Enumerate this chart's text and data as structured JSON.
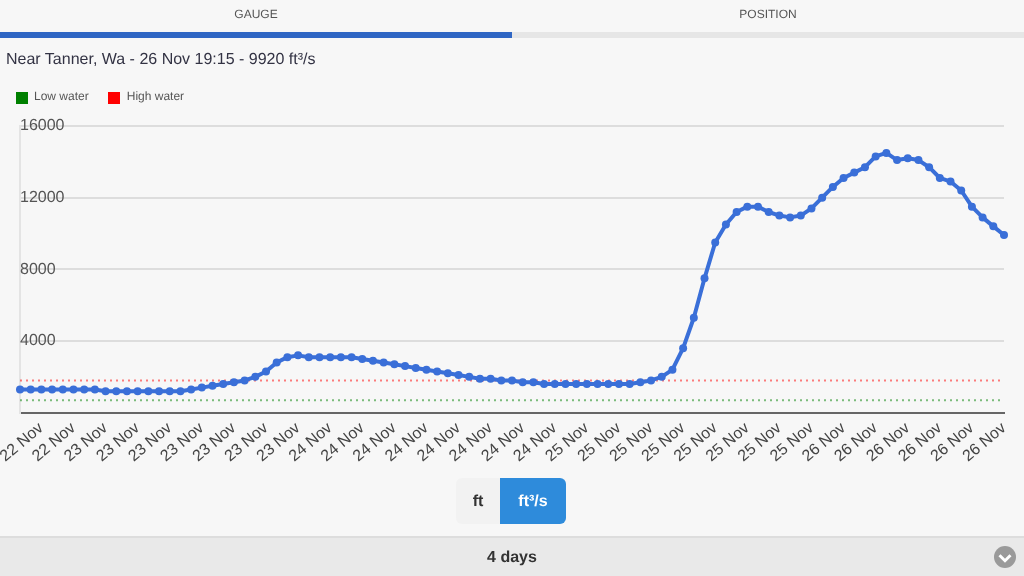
{
  "chart_data": {
    "type": "line",
    "title": "Near Tanner, Wa - 26 Nov 19:15 - 9920 ft³/s",
    "categories": [
      null,
      null,
      "22 Nov",
      null,
      null,
      "22 Nov",
      null,
      null,
      "23 Nov",
      null,
      null,
      "23 Nov",
      null,
      null,
      "23 Nov",
      null,
      null,
      "23 Nov",
      null,
      null,
      "23 Nov",
      null,
      null,
      "23 Nov",
      null,
      null,
      "23 Nov",
      null,
      null,
      "24 Nov",
      null,
      null,
      "24 Nov",
      null,
      null,
      "24 Nov",
      null,
      null,
      "24 Nov",
      null,
      null,
      "24 Nov",
      null,
      null,
      "24 Nov",
      null,
      null,
      "24 Nov",
      null,
      null,
      "24 Nov",
      null,
      null,
      "25 Nov",
      null,
      null,
      "25 Nov",
      null,
      null,
      "25 Nov",
      null,
      null,
      "25 Nov",
      null,
      null,
      "25 Nov",
      null,
      null,
      "25 Nov",
      null,
      null,
      "25 Nov",
      null,
      null,
      "25 Nov",
      null,
      null,
      "26 Nov",
      null,
      null,
      "26 Nov",
      null,
      null,
      "26 Nov",
      null,
      null,
      "26 Nov",
      null,
      null,
      "26 Nov",
      null,
      null,
      "26 Nov"
    ],
    "series": [
      {
        "color": "#3a6fd8",
        "values": [
          1300,
          1300,
          1300,
          1300,
          1300,
          1300,
          1300,
          1300,
          1200,
          1200,
          1200,
          1200,
          1200,
          1200,
          1200,
          1200,
          1300,
          1400,
          1500,
          1600,
          1700,
          1800,
          2000,
          2300,
          2800,
          3100,
          3200,
          3100,
          3100,
          3100,
          3100,
          3100,
          3000,
          2900,
          2800,
          2700,
          2600,
          2500,
          2400,
          2300,
          2200,
          2100,
          2000,
          1900,
          1900,
          1800,
          1800,
          1700,
          1700,
          1600,
          1600,
          1600,
          1600,
          1600,
          1600,
          1600,
          1600,
          1600,
          1700,
          1800,
          2000,
          2400,
          3600,
          5300,
          7500,
          9500,
          10500,
          11200,
          11500,
          11500,
          11200,
          11000,
          10900,
          11000,
          11400,
          12000,
          12600,
          13100,
          13400,
          13700,
          14300,
          14500,
          14100,
          14200,
          14100,
          13700,
          13100,
          12900,
          12400,
          11500,
          10900,
          10400,
          9920
        ]
      }
    ],
    "ylim": [
      0,
      16000
    ],
    "yticks": [
      4000,
      8000,
      12000,
      16000
    ],
    "grid": "y",
    "marker": "circle",
    "line_style": "solid",
    "legend": "top left",
    "ref_lines": [
      {
        "axis": "y",
        "value": 700,
        "label": "Low water",
        "color": "#008000",
        "line_style": "dotted"
      },
      {
        "axis": "y",
        "value": 1800,
        "label": "High water",
        "color": "#ff0000",
        "line_style": "dotted"
      }
    ],
    "annotations": [
      "GAUGE",
      "POSITION",
      "ft",
      "ft³/s",
      "4 days"
    ]
  }
}
